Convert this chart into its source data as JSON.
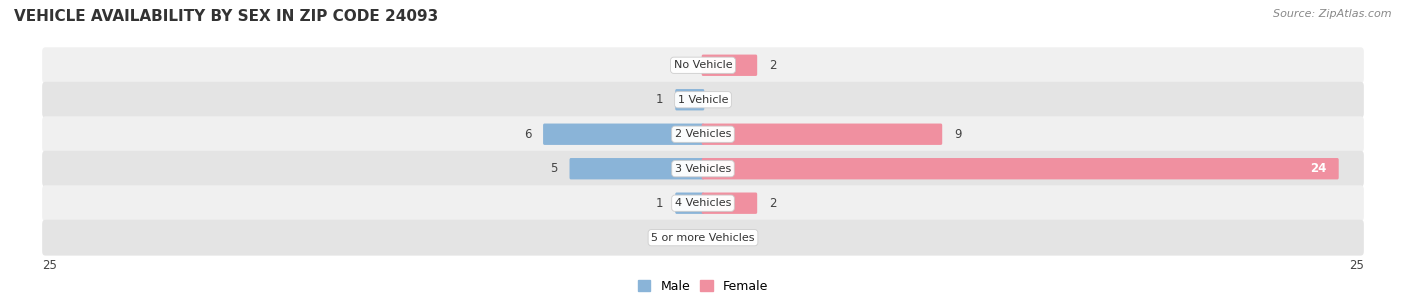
{
  "title": "VEHICLE AVAILABILITY BY SEX IN ZIP CODE 24093",
  "source": "Source: ZipAtlas.com",
  "categories": [
    "No Vehicle",
    "1 Vehicle",
    "2 Vehicles",
    "3 Vehicles",
    "4 Vehicles",
    "5 or more Vehicles"
  ],
  "male_values": [
    0,
    1,
    6,
    5,
    1,
    0
  ],
  "female_values": [
    2,
    0,
    9,
    24,
    2,
    0
  ],
  "male_color": "#8ab4d8",
  "female_color": "#f090a0",
  "row_bg_light": "#f0f0f0",
  "row_bg_dark": "#e4e4e4",
  "max_value": 25,
  "title_fontsize": 11,
  "source_fontsize": 8,
  "value_fontsize": 8.5,
  "category_fontsize": 8,
  "legend_fontsize": 9
}
